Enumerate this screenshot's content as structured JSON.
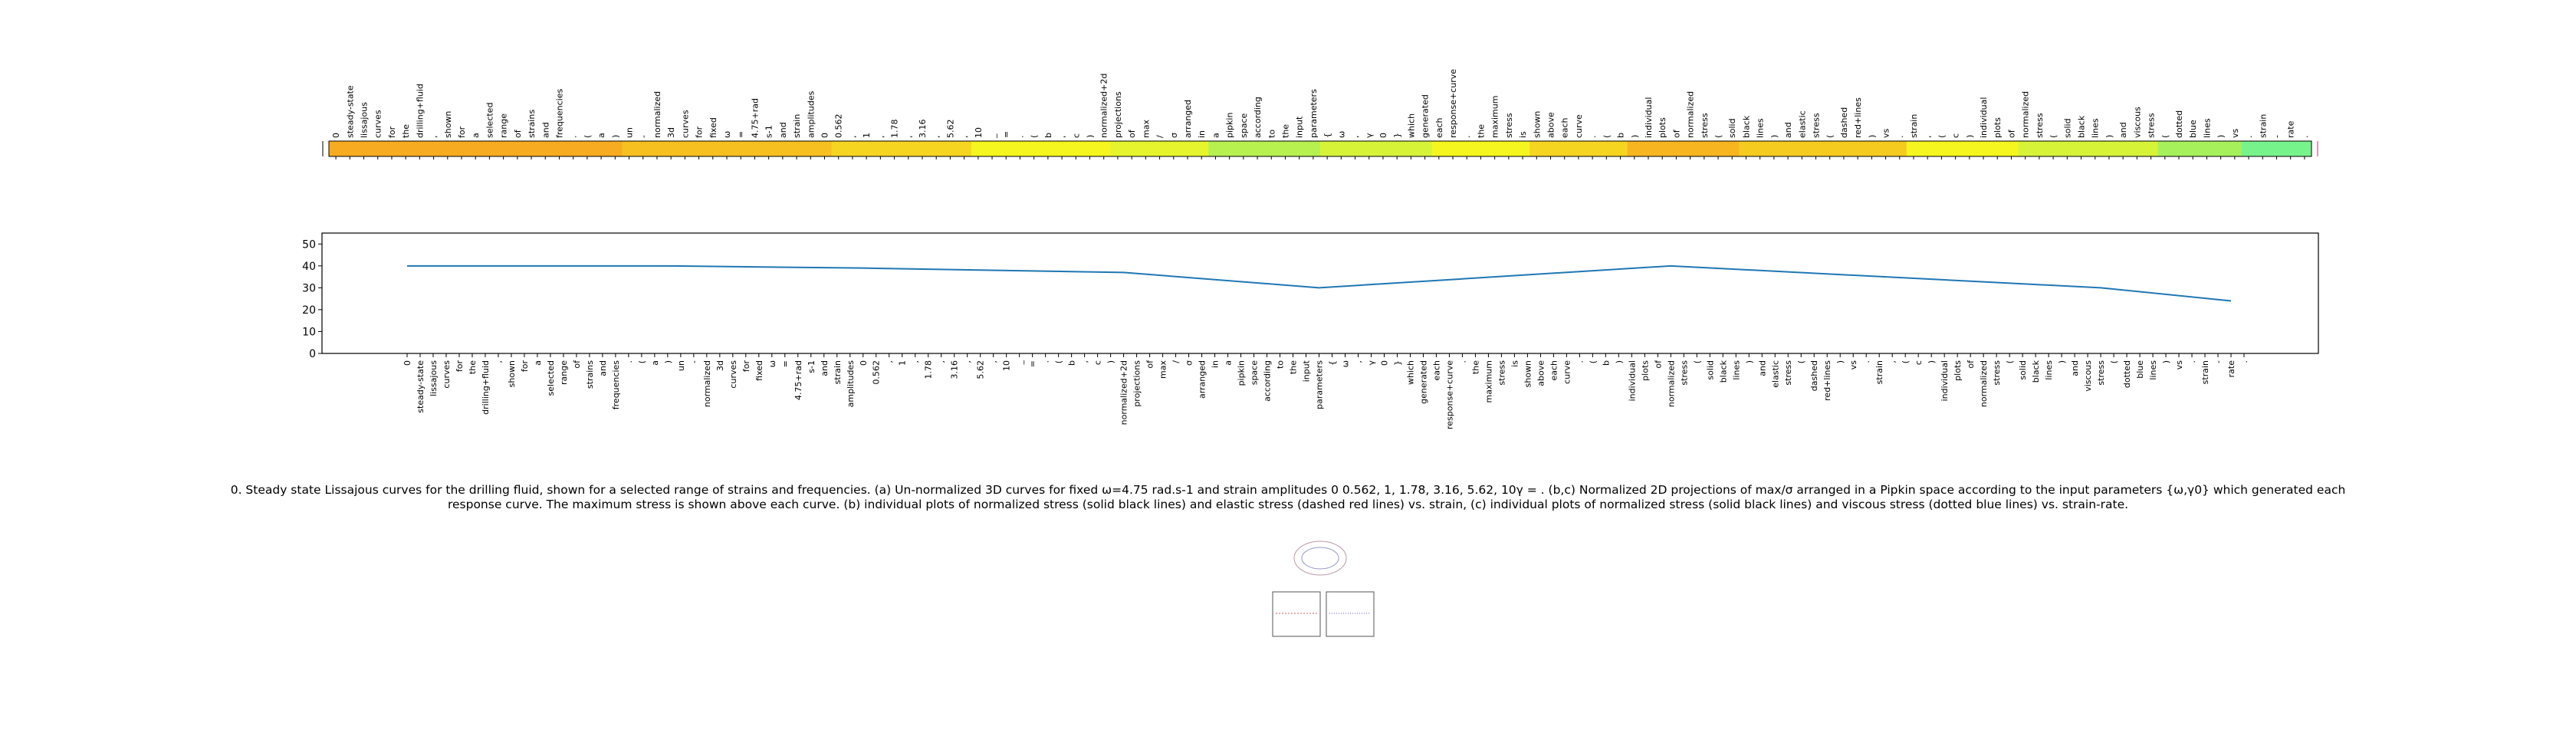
{
  "tokens": [
    "0",
    "steady-state",
    "lissajous",
    "curves",
    "for",
    "the",
    "drilling+fluid",
    ",",
    "shown",
    "for",
    "a",
    "selected",
    "range",
    "of",
    "strains",
    "and",
    "frequencies",
    ".",
    "(",
    "a",
    ")",
    "un",
    "-",
    "normalized",
    "3d",
    "curves",
    "for",
    "fixed",
    "ω",
    "=",
    "4.75+rad",
    "s-1",
    "and",
    "strain",
    "amplitudes",
    "0",
    "0.562",
    ",",
    "1",
    ",",
    "1.78",
    ",",
    "3.16",
    ",",
    "5.62",
    ",",
    "10",
    "_",
    "=",
    ".",
    "(",
    "b",
    ",",
    "c",
    ")",
    "normalized+2d",
    "projections",
    "of",
    "max",
    "/",
    "σ",
    "arranged",
    "in",
    "a",
    "pipkin",
    "space",
    "according",
    "to",
    "the",
    "input",
    "parameters",
    "{",
    "ω",
    ",",
    "γ",
    "0",
    "}",
    "which",
    "generated",
    "each",
    "response+curve",
    ".",
    "the",
    "maximum",
    "stress",
    "is",
    "shown",
    "above",
    "each",
    "curve",
    ".",
    "(",
    "b",
    ")",
    "individual",
    "plots",
    "of",
    "normalized",
    "stress",
    "(",
    "solid",
    "black",
    "lines",
    ")",
    "and",
    "elastic",
    "stress",
    "(",
    "dashed",
    "red+lines",
    ")",
    "vs",
    ".",
    "strain",
    ",",
    "(",
    "c",
    ")",
    "individual",
    "plots",
    "of",
    "normalized",
    "stress",
    "(",
    "solid",
    "black",
    "lines",
    ")",
    "and",
    "viscous",
    "stress",
    "(",
    "dotted",
    "blue",
    "lines",
    ")",
    "vs",
    ".",
    "strain",
    "-",
    "rate",
    "."
  ],
  "heat": {
    "values": [
      0.95,
      0.95,
      0.95,
      0.95,
      0.95,
      0.95,
      0.95,
      0.95,
      0.95,
      0.95,
      0.95,
      0.95,
      0.95,
      0.95,
      0.95,
      0.95,
      0.95,
      0.95,
      0.95,
      0.95,
      0.95,
      0.85,
      0.85,
      0.85,
      0.85,
      0.85,
      0.85,
      0.85,
      0.85,
      0.85,
      0.85,
      0.85,
      0.85,
      0.85,
      0.85,
      0.85,
      0.75,
      0.75,
      0.75,
      0.75,
      0.75,
      0.75,
      0.75,
      0.75,
      0.75,
      0.75,
      0.6,
      0.6,
      0.6,
      0.6,
      0.6,
      0.6,
      0.6,
      0.6,
      0.6,
      0.6,
      0.55,
      0.55,
      0.55,
      0.55,
      0.55,
      0.55,
      0.55,
      0.4,
      0.4,
      0.4,
      0.4,
      0.4,
      0.4,
      0.4,
      0.4,
      0.5,
      0.5,
      0.5,
      0.5,
      0.5,
      0.5,
      0.5,
      0.5,
      0.6,
      0.6,
      0.6,
      0.6,
      0.6,
      0.6,
      0.6,
      0.75,
      0.75,
      0.75,
      0.75,
      0.75,
      0.75,
      0.75,
      0.9,
      0.9,
      0.9,
      0.9,
      0.9,
      0.9,
      0.9,
      0.9,
      0.8,
      0.8,
      0.8,
      0.8,
      0.8,
      0.8,
      0.8,
      0.8,
      0.8,
      0.8,
      0.8,
      0.8,
      0.6,
      0.6,
      0.6,
      0.6,
      0.6,
      0.6,
      0.6,
      0.6,
      0.5,
      0.5,
      0.5,
      0.5,
      0.5,
      0.5,
      0.5,
      0.5,
      0.5,
      0.5,
      0.35,
      0.35,
      0.35,
      0.35,
      0.35,
      0.35,
      0.15,
      0.15,
      0.15,
      0.15,
      0.15
    ]
  },
  "chart_data": {
    "type": "line",
    "x": [
      0,
      20,
      35,
      55,
      70,
      97,
      120,
      130,
      140
    ],
    "values": [
      40,
      40,
      39,
      37,
      30,
      40,
      33,
      30,
      24
    ],
    "color": "#1f77b4",
    "ylim": [
      0,
      55
    ],
    "yticks": [
      0,
      10,
      20,
      30,
      40,
      50
    ]
  },
  "caption": "0. Steady state Lissajous curves for the drilling fluid, shown for a selected range of strains and frequencies. (a) Un-normalized 3D curves for fixed ω=4.75 rad.s-1 and strain amplitudes 0 0.562, 1, 1.78, 3.16, 5.62, 10γ = . (b,c) Normalized 2D projections of max/σ arranged in a Pipkin space according to the input parameters {ω,γ0} which generated each response curve. The maximum stress is shown above each curve. (b) individual plots of normalized stress (solid black lines) and elastic stress (dashed red lines) vs. strain, (c) individual plots of normalized stress (solid black lines) and viscous stress (dotted blue lines) vs. strain-rate."
}
